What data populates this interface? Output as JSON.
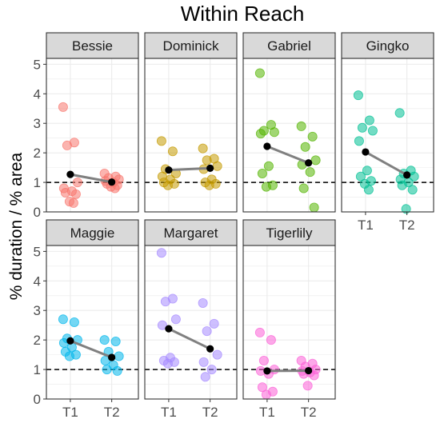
{
  "chart_data": {
    "type": "scatter",
    "title": "Within Reach",
    "xlabel": "",
    "ylabel": "% duration / % area",
    "categories": [
      "T1",
      "T2"
    ],
    "ylim": [
      0,
      5.2
    ],
    "yticks": [
      0,
      1,
      2,
      3,
      4,
      5
    ],
    "reference_line": 1,
    "grid": true,
    "colors": {
      "Bessie": "#F8766D",
      "Dominick": "#C49A00",
      "Gabriel": "#53B400",
      "Gingko": "#00C094",
      "Maggie": "#00B6EB",
      "Margaret": "#A58AFF",
      "Tigerlily": "#FB61D7",
      "mean_point": "#000000",
      "mean_line": "#808080",
      "strip_fill": "#d9d9d9",
      "panel_border": "#333333",
      "grid": "#ebebeb"
    },
    "panels": [
      {
        "name": "Bessie",
        "T1": [
          3.55,
          2.35,
          2.25,
          1.0,
          0.8,
          0.7,
          0.65,
          0.6,
          0.35,
          0.3
        ],
        "T2": [
          1.3,
          1.2,
          1.15,
          1.1,
          1.05,
          1.0,
          0.95,
          0.9,
          0.85,
          0.8
        ],
        "mean": [
          1.27,
          1.01
        ]
      },
      {
        "name": "Dominick",
        "T1": [
          2.4,
          2.05,
          1.45,
          1.3,
          1.2,
          1.1,
          1.0,
          0.95,
          0.9
        ],
        "T2": [
          2.15,
          1.8,
          1.75,
          1.55,
          1.45,
          1.1,
          1.0,
          0.95,
          0.9
        ],
        "mean": [
          1.42,
          1.48
        ]
      },
      {
        "name": "Gabriel",
        "T1": [
          4.7,
          2.95,
          2.75,
          2.7,
          2.65,
          1.55,
          1.3,
          0.9,
          0.85
        ],
        "T2": [
          2.9,
          2.55,
          2.2,
          1.75,
          1.6,
          1.35,
          0.8,
          0.15
        ],
        "mean": [
          2.22,
          1.66
        ]
      },
      {
        "name": "Gingko",
        "T1": [
          3.95,
          3.1,
          2.85,
          2.75,
          2.4,
          1.4,
          1.2,
          1.05,
          0.95,
          0.75
        ],
        "T2": [
          3.35,
          1.4,
          1.3,
          1.2,
          1.1,
          1.0,
          0.9,
          0.75,
          0.1
        ],
        "mean": [
          2.03,
          1.25
        ]
      },
      {
        "name": "Maggie",
        "T1": [
          2.7,
          2.6,
          2.05,
          2.0,
          1.9,
          1.75,
          1.6,
          1.5,
          1.45
        ],
        "T2": [
          2.0,
          1.95,
          1.6,
          1.45,
          1.3,
          1.15,
          1.0,
          0.95
        ],
        "mean": [
          1.97,
          1.41
        ]
      },
      {
        "name": "Margaret",
        "T1": [
          4.95,
          3.4,
          3.3,
          2.7,
          2.5,
          1.4,
          1.3,
          1.25,
          1.2
        ],
        "T2": [
          3.25,
          2.55,
          2.3,
          1.5,
          1.25,
          1.0,
          0.75
        ],
        "mean": [
          2.38,
          1.7
        ]
      },
      {
        "name": "Tigerlily",
        "T1": [
          2.25,
          2.0,
          1.3,
          1.0,
          0.95,
          0.85,
          0.4,
          0.25,
          0.15
        ],
        "T2": [
          1.3,
          1.2,
          1.1,
          1.0,
          0.95,
          0.9,
          0.85,
          0.8,
          0.45
        ],
        "mean": [
          0.95,
          0.96
        ]
      }
    ]
  }
}
